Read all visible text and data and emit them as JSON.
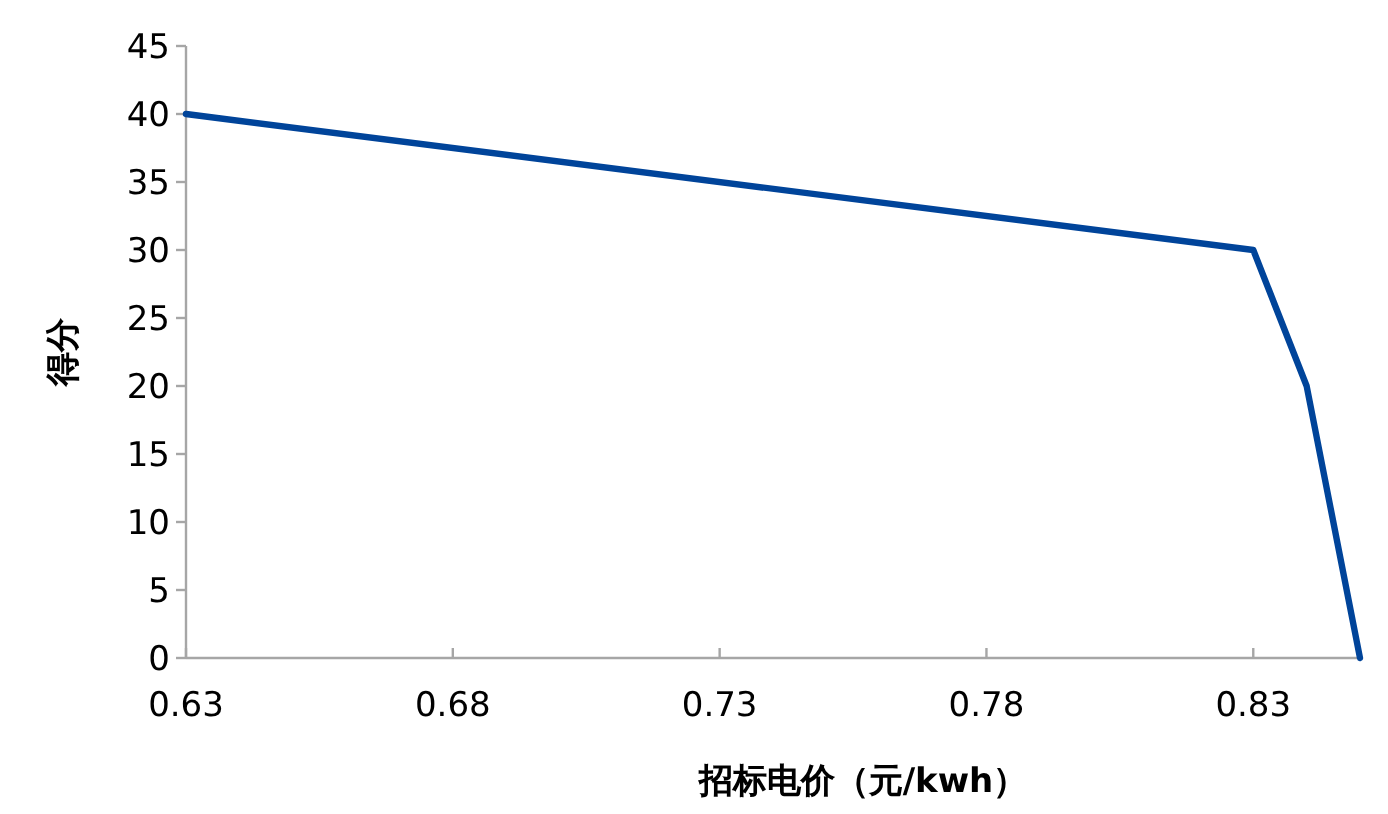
{
  "chart_data": {
    "type": "line",
    "xlabel": "招标电价（元/kwh）",
    "ylabel": "得分",
    "x": [
      0.63,
      0.83,
      0.84,
      0.85
    ],
    "series": [
      {
        "color": "#00449a",
        "values": [
          40,
          30,
          20,
          0
        ]
      }
    ],
    "xlim": [
      0.63,
      0.85
    ],
    "ylim": [
      0,
      45
    ],
    "xticks": [
      0.63,
      0.68,
      0.73,
      0.78,
      0.83
    ],
    "yticks": [
      0,
      5,
      10,
      15,
      20,
      25,
      30,
      35,
      40,
      45
    ]
  }
}
